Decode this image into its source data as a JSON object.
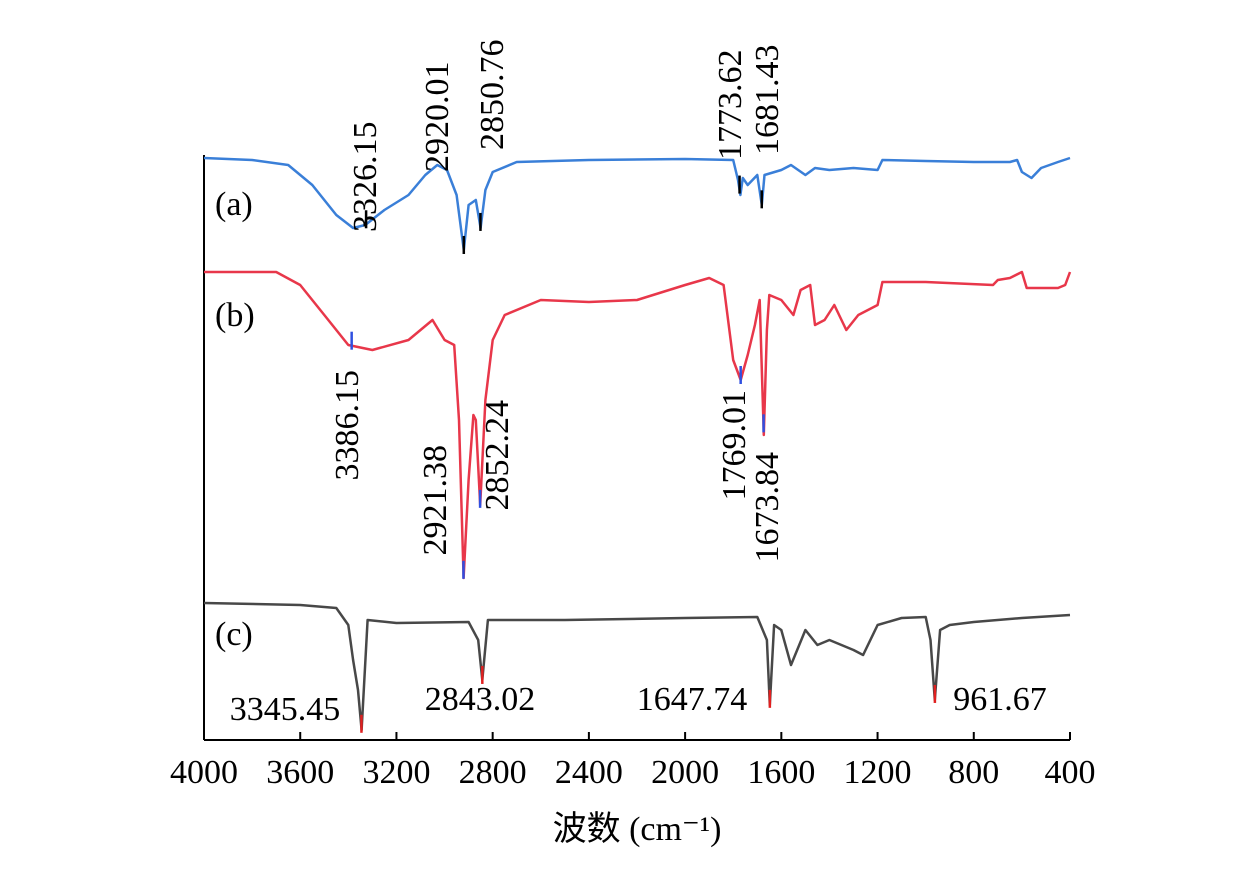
{
  "chart_data": {
    "type": "line",
    "x_label": "波数 (cm⁻¹)",
    "xlim": [
      4000,
      400
    ],
    "xticks": [
      4000,
      3600,
      3200,
      2800,
      2400,
      2000,
      1600,
      1200,
      800,
      400
    ],
    "ylim": [
      0,
      590
    ],
    "series": [
      {
        "name": "(a)",
        "color": "#3a7fd8",
        "peak_color": "#000000",
        "x": [
          4000,
          3800,
          3650,
          3550,
          3450,
          3380,
          3330,
          3250,
          3150,
          3080,
          3030,
          2990,
          2950,
          2920,
          2900,
          2870,
          2850,
          2830,
          2800,
          2700,
          2400,
          2000,
          1800,
          1780,
          1770,
          1760,
          1740,
          1700,
          1681,
          1670,
          1600,
          1560,
          1500,
          1460,
          1400,
          1300,
          1200,
          1180,
          1000,
          800,
          650,
          620,
          600,
          560,
          520,
          450,
          400
        ],
        "values": [
          582,
          580,
          575,
          555,
          525,
          512,
          515,
          530,
          545,
          565,
          575,
          570,
          545,
          490,
          535,
          540,
          512,
          550,
          568,
          578,
          580,
          581,
          580,
          560,
          545,
          562,
          555,
          565,
          535,
          565,
          570,
          575,
          565,
          572,
          570,
          572,
          570,
          580,
          579,
          578,
          578,
          580,
          568,
          562,
          572,
          578,
          582
        ],
        "peaks": [
          3326.15,
          2920.01,
          2850.76,
          1773.62,
          1681.43
        ]
      },
      {
        "name": "(b)",
        "color": "#e8374a",
        "peak_color": "#3050e0",
        "x": [
          4000,
          3700,
          3600,
          3500,
          3400,
          3300,
          3150,
          3050,
          3000,
          2960,
          2940,
          2921,
          2900,
          2880,
          2870,
          2852,
          2830,
          2800,
          2750,
          2600,
          2400,
          2200,
          2000,
          1900,
          1840,
          1800,
          1769,
          1740,
          1710,
          1690,
          1673,
          1660,
          1650,
          1600,
          1550,
          1520,
          1480,
          1460,
          1420,
          1380,
          1330,
          1280,
          1200,
          1180,
          1000,
          720,
          700,
          650,
          600,
          580,
          450,
          420,
          400
        ],
        "values": [
          468,
          468,
          455,
          425,
          395,
          390,
          400,
          420,
          400,
          395,
          320,
          162,
          260,
          325,
          320,
          235,
          340,
          400,
          425,
          440,
          438,
          440,
          455,
          462,
          455,
          380,
          360,
          385,
          415,
          440,
          305,
          410,
          445,
          440,
          425,
          450,
          455,
          415,
          420,
          435,
          410,
          425,
          435,
          458,
          458,
          455,
          460,
          462,
          468,
          452,
          452,
          455,
          468
        ],
        "peaks": [
          3386.15,
          2921.38,
          2852.24,
          1769.01,
          1673.84
        ]
      },
      {
        "name": "(c)",
        "color": "#484848",
        "peak_color": "#e02020",
        "x": [
          4000,
          3600,
          3450,
          3400,
          3380,
          3360,
          3345,
          3320,
          3200,
          2900,
          2860,
          2843,
          2820,
          2500,
          2000,
          1700,
          1660,
          1648,
          1630,
          1600,
          1560,
          1500,
          1450,
          1400,
          1300,
          1260,
          1200,
          1100,
          1000,
          980,
          962,
          940,
          900,
          800,
          600,
          400
        ],
        "values": [
          137,
          135,
          132,
          115,
          80,
          50,
          10,
          120,
          117,
          118,
          100,
          60,
          120,
          120,
          122,
          123,
          100,
          35,
          115,
          110,
          75,
          110,
          95,
          100,
          90,
          85,
          115,
          122,
          123,
          100,
          40,
          110,
          115,
          118,
          122,
          125
        ],
        "peaks": [
          3345.45,
          2843.02,
          1647.74,
          961.67
        ]
      }
    ]
  }
}
